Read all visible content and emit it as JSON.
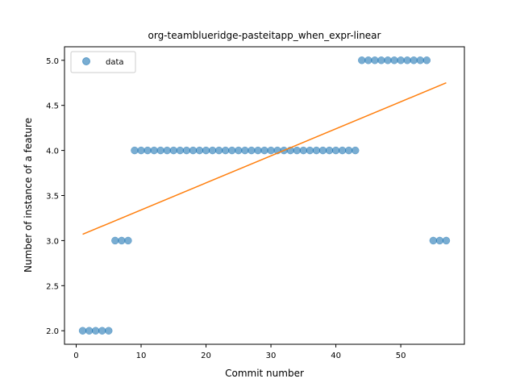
{
  "chart_data": {
    "type": "scatter",
    "title": "org-teamblueridge-pasteitapp_when_expr-linear",
    "xlabel": "Commit number",
    "ylabel": "Number of instance of a feature",
    "xlim": [
      -1.8,
      59.8
    ],
    "ylim": [
      1.85,
      5.15
    ],
    "xticks": [
      0,
      10,
      20,
      30,
      40,
      50
    ],
    "yticks": [
      2.0,
      2.5,
      3.0,
      3.5,
      4.0,
      4.5,
      5.0
    ],
    "xtick_labels": [
      "0",
      "10",
      "20",
      "30",
      "40",
      "50"
    ],
    "ytick_labels": [
      "2.0",
      "2.5",
      "3.0",
      "3.5",
      "4.0",
      "4.5",
      "5.0"
    ],
    "grid": false,
    "legend_position": "top-left",
    "series": [
      {
        "name": "data",
        "kind": "scatter",
        "color": "#1f77b4",
        "x": [
          1,
          2,
          3,
          4,
          5,
          6,
          7,
          8,
          9,
          10,
          11,
          12,
          13,
          14,
          15,
          16,
          17,
          18,
          19,
          20,
          21,
          22,
          23,
          24,
          25,
          26,
          27,
          28,
          29,
          30,
          31,
          32,
          33,
          34,
          35,
          36,
          37,
          38,
          39,
          40,
          41,
          42,
          43,
          44,
          45,
          46,
          47,
          48,
          49,
          50,
          51,
          52,
          53,
          54,
          55,
          56,
          57
        ],
        "y": [
          2,
          2,
          2,
          2,
          2,
          3,
          3,
          3,
          4,
          4,
          4,
          4,
          4,
          4,
          4,
          4,
          4,
          4,
          4,
          4,
          4,
          4,
          4,
          4,
          4,
          4,
          4,
          4,
          4,
          4,
          4,
          4,
          4,
          4,
          4,
          4,
          4,
          4,
          4,
          4,
          4,
          4,
          4,
          5,
          5,
          5,
          5,
          5,
          5,
          5,
          5,
          5,
          5,
          5,
          3,
          3,
          3
        ]
      },
      {
        "kind": "line",
        "color": "#ff7f0e",
        "x": [
          1,
          57
        ],
        "y": [
          3.07,
          4.75
        ]
      }
    ]
  }
}
